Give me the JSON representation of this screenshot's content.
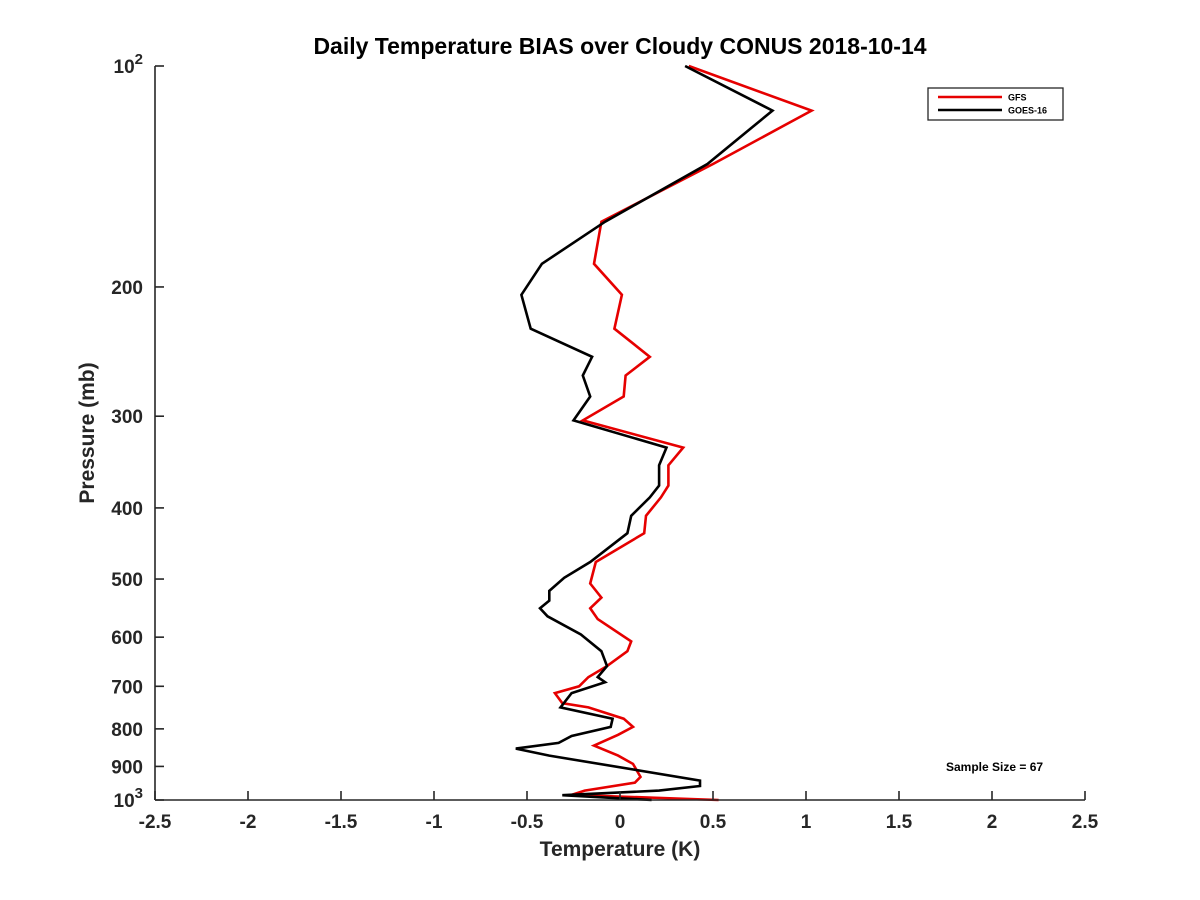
{
  "chart_data": {
    "type": "line",
    "title": "Daily Temperature BIAS over Cloudy CONUS 2018-10-14",
    "xlabel": "Temperature (K)",
    "ylabel": "Pressure (mb)",
    "xlim": [
      -2.5,
      2.5
    ],
    "ylim": [
      100,
      1000
    ],
    "y_scale": "log",
    "y_reversed": true,
    "x_ticks": [
      {
        "value": -2.5,
        "label": "-2.5"
      },
      {
        "value": -2,
        "label": "-2"
      },
      {
        "value": -1.5,
        "label": "-1.5"
      },
      {
        "value": -1,
        "label": "-1"
      },
      {
        "value": -0.5,
        "label": "-0.5"
      },
      {
        "value": 0,
        "label": "0"
      },
      {
        "value": 0.5,
        "label": "0.5"
      },
      {
        "value": 1,
        "label": "1"
      },
      {
        "value": 1.5,
        "label": "1.5"
      },
      {
        "value": 2,
        "label": "2"
      },
      {
        "value": 2.5,
        "label": "2.5"
      }
    ],
    "y_ticks": [
      {
        "value": 100,
        "base": "10",
        "exp": "2"
      },
      {
        "value": 200,
        "label": "200"
      },
      {
        "value": 300,
        "label": "300"
      },
      {
        "value": 400,
        "label": "400"
      },
      {
        "value": 500,
        "label": "500"
      },
      {
        "value": 600,
        "label": "600"
      },
      {
        "value": 700,
        "label": "700"
      },
      {
        "value": 800,
        "label": "800"
      },
      {
        "value": 900,
        "label": "900"
      },
      {
        "value": 1000,
        "base": "10",
        "exp": "3"
      }
    ],
    "grid": false,
    "legend_position": "top-right",
    "annotation": "Sample Size = 67",
    "series": [
      {
        "name": "GFS",
        "color": "#e60000",
        "points": [
          [
            0.37,
            100
          ],
          [
            1.03,
            115
          ],
          [
            0.5,
            136
          ],
          [
            -0.1,
            163
          ],
          [
            -0.14,
            186
          ],
          [
            0.01,
            205
          ],
          [
            -0.03,
            228
          ],
          [
            0.16,
            249
          ],
          [
            0.03,
            264
          ],
          [
            0.02,
            282
          ],
          [
            -0.2,
            304
          ],
          [
            0.34,
            331
          ],
          [
            0.26,
            350
          ],
          [
            0.26,
            373
          ],
          [
            0.22,
            387
          ],
          [
            0.14,
            410
          ],
          [
            0.13,
            433
          ],
          [
            -0.13,
            474
          ],
          [
            -0.16,
            507
          ],
          [
            -0.1,
            530
          ],
          [
            -0.16,
            548
          ],
          [
            -0.12,
            567
          ],
          [
            0.06,
            608
          ],
          [
            0.04,
            627
          ],
          [
            -0.07,
            657
          ],
          [
            -0.17,
            680
          ],
          [
            -0.22,
            700
          ],
          [
            -0.35,
            715
          ],
          [
            -0.31,
            738
          ],
          [
            -0.17,
            748
          ],
          [
            0.02,
            775
          ],
          [
            0.07,
            795
          ],
          [
            -0.01,
            815
          ],
          [
            -0.14,
            843
          ],
          [
            -0.01,
            870
          ],
          [
            0.07,
            893
          ],
          [
            0.11,
            930
          ],
          [
            0.08,
            947
          ],
          [
            -0.19,
            971
          ],
          [
            -0.26,
            984
          ],
          [
            0.53,
            1000
          ]
        ]
      },
      {
        "name": "GOES-16",
        "color": "#000000",
        "points": [
          [
            0.35,
            100
          ],
          [
            0.82,
            115
          ],
          [
            0.47,
            136
          ],
          [
            -0.08,
            163
          ],
          [
            -0.42,
            186
          ],
          [
            -0.53,
            205
          ],
          [
            -0.48,
            228
          ],
          [
            -0.15,
            249
          ],
          [
            -0.2,
            264
          ],
          [
            -0.16,
            282
          ],
          [
            -0.25,
            304
          ],
          [
            0.25,
            331
          ],
          [
            0.21,
            350
          ],
          [
            0.21,
            373
          ],
          [
            0.16,
            387
          ],
          [
            0.06,
            410
          ],
          [
            0.04,
            433
          ],
          [
            -0.16,
            474
          ],
          [
            -0.3,
            498
          ],
          [
            -0.38,
            519
          ],
          [
            -0.38,
            535
          ],
          [
            -0.43,
            548
          ],
          [
            -0.39,
            562
          ],
          [
            -0.21,
            595
          ],
          [
            -0.1,
            627
          ],
          [
            -0.07,
            657
          ],
          [
            -0.12,
            680
          ],
          [
            -0.08,
            691
          ],
          [
            -0.26,
            715
          ],
          [
            -0.32,
            748
          ],
          [
            -0.04,
            775
          ],
          [
            -0.05,
            795
          ],
          [
            -0.26,
            818
          ],
          [
            -0.33,
            836
          ],
          [
            -0.56,
            851
          ],
          [
            -0.38,
            870
          ],
          [
            0.43,
            941
          ],
          [
            0.43,
            957
          ],
          [
            0.21,
            971
          ],
          [
            -0.31,
            985
          ],
          [
            0.17,
            1000
          ]
        ]
      }
    ]
  }
}
